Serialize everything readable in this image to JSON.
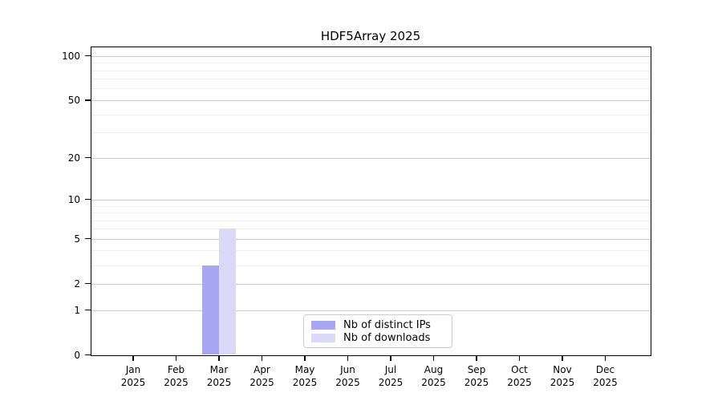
{
  "chart_data": {
    "type": "bar",
    "title": "HDF5Array 2025",
    "x_categories": [
      "Jan",
      "Feb",
      "Mar",
      "Apr",
      "May",
      "Jun",
      "Jul",
      "Aug",
      "Sep",
      "Oct",
      "Nov",
      "Dec"
    ],
    "x_year_label": "2025",
    "series": [
      {
        "name": "Nb of distinct IPs",
        "color": "#a8a8f2",
        "values": [
          0,
          0,
          3,
          0,
          0,
          0,
          0,
          0,
          0,
          0,
          0,
          0
        ]
      },
      {
        "name": "Nb of downloads",
        "color": "#dadaf8",
        "values": [
          0,
          0,
          6,
          0,
          0,
          0,
          0,
          0,
          0,
          0,
          0,
          0
        ]
      }
    ],
    "y_axis": {
      "scale": "log1p",
      "tick_values": [
        0,
        1,
        2,
        5,
        10,
        20,
        50,
        100
      ],
      "minor_grid_values": [
        3,
        4,
        6,
        7,
        8,
        9,
        30,
        40,
        60,
        70,
        80,
        90
      ],
      "ylim": [
        0,
        116
      ]
    },
    "legend": {
      "position": "inside-bottom-center",
      "entries": [
        "Nb of distinct IPs",
        "Nb of downloads"
      ]
    },
    "grid": true
  },
  "colors": {
    "axis": "#000000",
    "major_grid": "#cdcdcd",
    "minor_grid": "#f0f0f0",
    "background": "#ffffff",
    "text": "#000000",
    "legend_border": "#cccccc"
  }
}
